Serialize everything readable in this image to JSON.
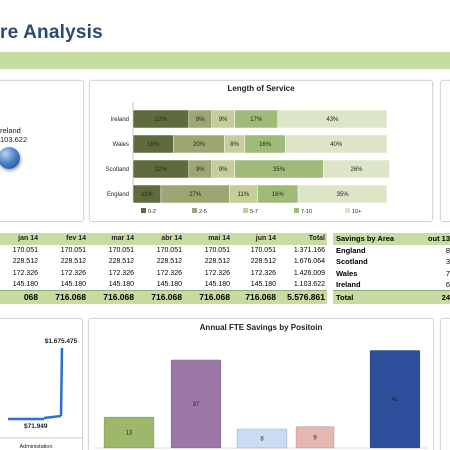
{
  "header": {
    "title": "re Analysis"
  },
  "map_panel": {
    "region_label": "reland",
    "region_value": "103.622"
  },
  "los_chart": {
    "title": "Length of Service",
    "rows": [
      {
        "label": "Ireland",
        "values": [
          "22%",
          "9%",
          "9%",
          "17%",
          "43%"
        ]
      },
      {
        "label": "Wales",
        "values": [
          "16%",
          "20%",
          "8%",
          "16%",
          "40%"
        ]
      },
      {
        "label": "Scotland",
        "values": [
          "22%",
          "9%",
          "9%",
          "35%",
          "26%"
        ]
      },
      {
        "label": "England",
        "values": [
          "11%",
          "27%",
          "11%",
          "16%",
          "35%"
        ]
      }
    ],
    "legend": [
      "0-2",
      "2-5",
      "5-7",
      "7-10",
      "10+"
    ],
    "colors": [
      "#5e6b3d",
      "#9da572",
      "#c6cc9a",
      "#9fbb78",
      "#dde5c9"
    ]
  },
  "chart_data": [
    {
      "type": "bar",
      "title": "Length of Service",
      "categories": [
        "Ireland",
        "Wales",
        "Scotland",
        "England"
      ],
      "series": [
        {
          "name": "0-2",
          "values": [
            22,
            16,
            22,
            11
          ]
        },
        {
          "name": "2-5",
          "values": [
            9,
            20,
            9,
            27
          ]
        },
        {
          "name": "5-7",
          "values": [
            9,
            8,
            9,
            11
          ]
        },
        {
          "name": "7-10",
          "values": [
            17,
            16,
            35,
            16
          ]
        },
        {
          "name": "10+",
          "values": [
            43,
            40,
            26,
            35
          ]
        }
      ],
      "stacked": true,
      "orientation": "horizontal",
      "legend": "bottom"
    },
    {
      "type": "bar",
      "title": "Annual FTE Savings by Positoin",
      "values": [
        13,
        37,
        8,
        9,
        41
      ],
      "colors": [
        "#9db86b",
        "#9c78a6",
        "#c9dcf2",
        "#e4b7b0",
        "#2e4f9c"
      ],
      "ylim": [
        0,
        42
      ]
    },
    {
      "type": "line",
      "labels": [
        "$1.675.475",
        "$71.949"
      ],
      "categories": [
        "Administation"
      ]
    }
  ],
  "table": {
    "headers": [
      "jan 14",
      "fev 14",
      "mar 14",
      "abr 14",
      "mai 14",
      "jun 14",
      "Total"
    ],
    "rows": [
      [
        "170.051",
        "170.051",
        "170.051",
        "170.051",
        "170.051",
        "170.051",
        "1.371.166"
      ],
      [
        "228.512",
        "228.512",
        "228.512",
        "228.512",
        "228.512",
        "228.512",
        "1.676.064"
      ],
      [
        "172.326",
        "172.326",
        "172.326",
        "172.326",
        "172.326",
        "172.326",
        "1.426.009"
      ],
      [
        "145.180",
        "145.180",
        "145.180",
        "145.180",
        "145.180",
        "145.180",
        "1.103.622"
      ]
    ],
    "totals": [
      "068",
      "716.068",
      "716.068",
      "716.068",
      "716.068",
      "716.068",
      "5.576.861"
    ]
  },
  "area_table": {
    "header": "Savings by Area",
    "col": "out 13",
    "rows": [
      {
        "label": "England",
        "value": "8"
      },
      {
        "label": "Scotland",
        "value": "3"
      },
      {
        "label": "Wales",
        "value": "7"
      },
      {
        "label": "Ireland",
        "value": "6"
      }
    ],
    "total_label": "Total",
    "total_value": "24"
  },
  "admin_chart": {
    "top_value": "$1.675.475",
    "bottom_value": "$71.949",
    "axis_label": "Administation"
  },
  "fte_chart": {
    "title": "Annual FTE Savings by Positoin"
  }
}
